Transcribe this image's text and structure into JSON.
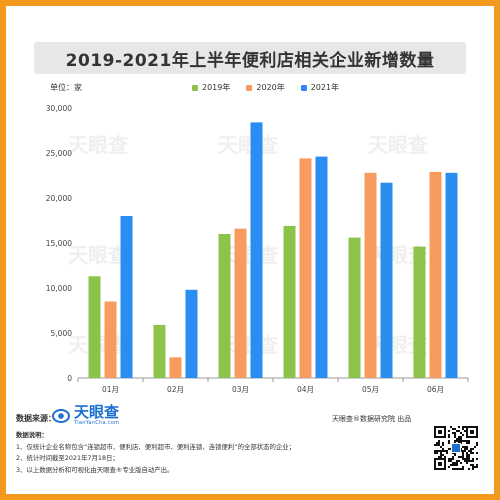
{
  "title": "2019-2021年上半年便利店相关企业新增数量",
  "unit_label": "单位：家",
  "chart_data": {
    "type": "bar",
    "title": "2019-2021年上半年便利店相关企业新增数量",
    "categories": [
      "01月",
      "02月",
      "03月",
      "04月",
      "05月",
      "06月"
    ],
    "series": [
      {
        "name": "2019年",
        "color": "#8cc34a",
        "values": [
          11300,
          5900,
          16000,
          16900,
          15600,
          14600
        ]
      },
      {
        "name": "2020年",
        "color": "#f89b5e",
        "values": [
          8500,
          2300,
          16600,
          24400,
          22800,
          22900
        ]
      },
      {
        "name": "2021年",
        "color": "#2a8ef0",
        "values": [
          18000,
          9800,
          28400,
          24600,
          21700,
          22800
        ]
      }
    ],
    "yticks": [
      "0",
      "5,000",
      "10,000",
      "15,000",
      "20,000",
      "25,000",
      "30,000"
    ],
    "ylim": [
      0,
      30000
    ],
    "xlabel": "",
    "ylabel": "",
    "legend_position": "top"
  },
  "watermark": "天眼查",
  "footer": {
    "source_label": "数据来源：",
    "brand_name": "天眼查",
    "brand_domain": "TianYanCha.com",
    "notes_title": "数据说明：",
    "notes": [
      "1、仅统计企业名称包含“连锁超市、便利店、便利超市、便利连锁、连锁便利”的全部状态的企业；",
      "2、统计时间截至2021年7月18日；",
      "3、以上数据分析和可视化由天眼查®专业版自动产出。"
    ],
    "credit": "天眼查®数据研究院 出品"
  }
}
